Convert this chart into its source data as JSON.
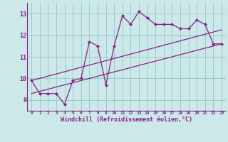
{
  "bg_color": "#cce8e8",
  "grid_color": "#99cccc",
  "line_color": "#882288",
  "marker_color": "#882288",
  "xlabel": "Windchill (Refroidissement éolien,°C)",
  "xlim": [
    -0.5,
    23.5
  ],
  "ylim": [
    8.5,
    13.5
  ],
  "yticks": [
    9,
    10,
    11,
    12,
    13
  ],
  "xticks": [
    0,
    1,
    2,
    3,
    4,
    5,
    6,
    7,
    8,
    9,
    10,
    11,
    12,
    13,
    14,
    15,
    16,
    17,
    18,
    19,
    20,
    21,
    22,
    23
  ],
  "line1_x": [
    0,
    1,
    2,
    3,
    4,
    5,
    6,
    7,
    8,
    9,
    10,
    11,
    12,
    13,
    14,
    15,
    16,
    17,
    18,
    19,
    20,
    21,
    22,
    23
  ],
  "line1_y": [
    9.9,
    9.3,
    9.3,
    9.3,
    8.8,
    9.9,
    10.0,
    11.7,
    11.5,
    9.7,
    11.5,
    12.9,
    12.5,
    13.1,
    12.8,
    12.5,
    12.5,
    12.5,
    12.3,
    12.3,
    12.7,
    12.5,
    11.6,
    11.6
  ],
  "line2_x": [
    0,
    23
  ],
  "line2_y": [
    9.3,
    11.6
  ],
  "line3_x": [
    0,
    23
  ],
  "line3_y": [
    9.9,
    12.25
  ]
}
